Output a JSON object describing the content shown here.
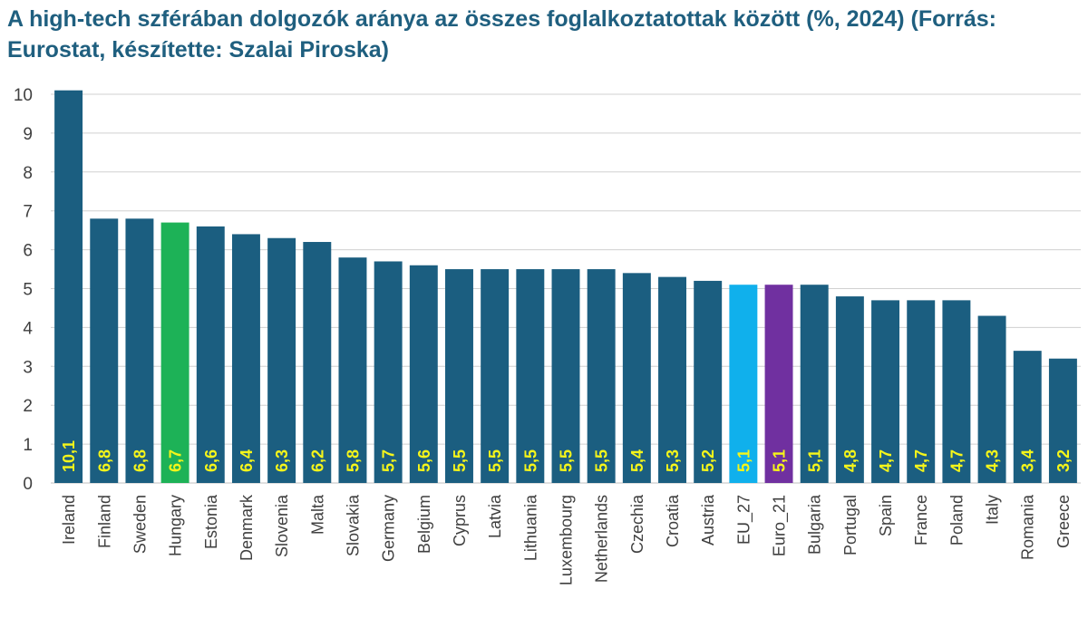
{
  "chart_data": {
    "type": "bar",
    "title": "A high-tech szférában dolgozók aránya az összes foglalkoztatottak között (%, 2024) (Forrás: Eurostat, készítette: Szalai Piroska)",
    "xlabel": "",
    "ylabel": "",
    "categories": [
      "Ireland",
      "Finland",
      "Sweden",
      "Hungary",
      "Estonia",
      "Denmark",
      "Slovenia",
      "Malta",
      "Slovakia",
      "Germany",
      "Belgium",
      "Cyprus",
      "Latvia",
      "Lithuania",
      "Luxembourg",
      "Netherlands",
      "Czechia",
      "Croatia",
      "Austria",
      "EU_27",
      "Euro_21",
      "Bulgaria",
      "Portugal",
      "Spain",
      "France",
      "Poland",
      "Italy",
      "Romania",
      "Greece"
    ],
    "values": [
      10.1,
      6.8,
      6.8,
      6.7,
      6.6,
      6.4,
      6.3,
      6.2,
      5.8,
      5.7,
      5.6,
      5.5,
      5.5,
      5.5,
      5.5,
      5.5,
      5.4,
      5.3,
      5.2,
      5.1,
      5.1,
      5.1,
      4.8,
      4.7,
      4.7,
      4.7,
      4.3,
      3.4,
      3.2
    ],
    "data_labels": [
      "10,1",
      "6,8",
      "6,8",
      "6,7",
      "6,6",
      "6,4",
      "6,3",
      "6,2",
      "5,8",
      "5,7",
      "5,6",
      "5,5",
      "5,5",
      "5,5",
      "5,5",
      "5,5",
      "5,4",
      "5,3",
      "5,2",
      "5,1",
      "5,1",
      "5,1",
      "4,8",
      "4,7",
      "4,7",
      "4,7",
      "4,3",
      "3,4",
      "3,2"
    ],
    "yticks": [
      "0",
      "1",
      "2",
      "3",
      "4",
      "5",
      "6",
      "7",
      "8",
      "9",
      "10"
    ],
    "ylim": [
      0,
      10
    ],
    "grid": true,
    "legend": "none",
    "colors": {
      "default_bar": "#1b5e80",
      "Hungary": "#1db257",
      "EU_27": "#10b0ec",
      "Euro_21": "#7030a0",
      "data_label": "#f5f51a",
      "title": "#1f5f7f",
      "grid": "#d0d0d0"
    }
  }
}
